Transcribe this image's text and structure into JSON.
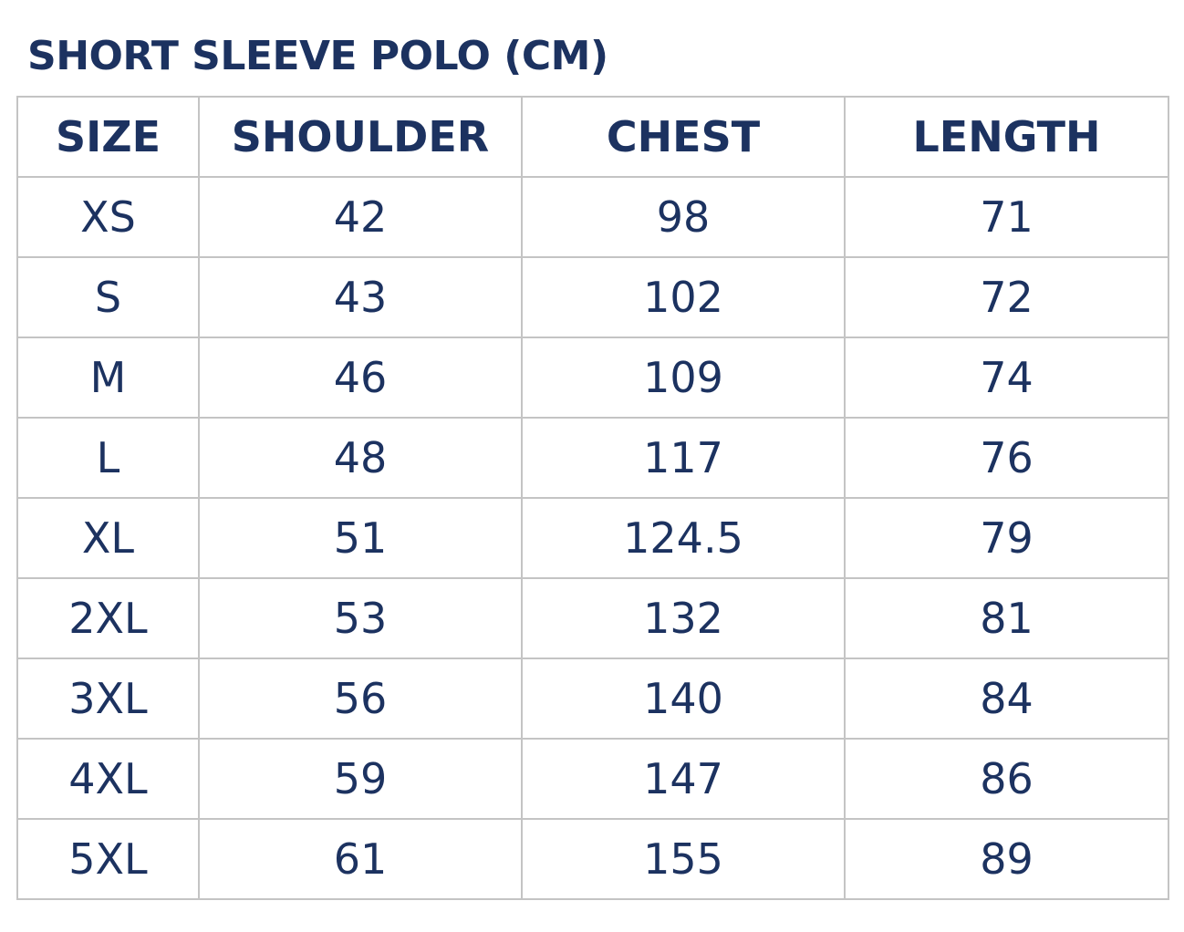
{
  "title": "SHORT SLEEVE POLO (CM)",
  "colors": {
    "text": "#1c3260",
    "border": "#c4c4c4",
    "background": "#ffffff"
  },
  "table": {
    "headers": [
      "SIZE",
      "SHOULDER",
      "CHEST",
      "LENGTH"
    ],
    "rows": [
      [
        "XS",
        "42",
        "98",
        "71"
      ],
      [
        "S",
        "43",
        "102",
        "72"
      ],
      [
        "M",
        "46",
        "109",
        "74"
      ],
      [
        "L",
        "48",
        "117",
        "76"
      ],
      [
        "XL",
        "51",
        "124.5",
        "79"
      ],
      [
        "2XL",
        "53",
        "132",
        "81"
      ],
      [
        "3XL",
        "56",
        "140",
        "84"
      ],
      [
        "4XL",
        "59",
        "147",
        "86"
      ],
      [
        "5XL",
        "61",
        "155",
        "89"
      ]
    ]
  }
}
